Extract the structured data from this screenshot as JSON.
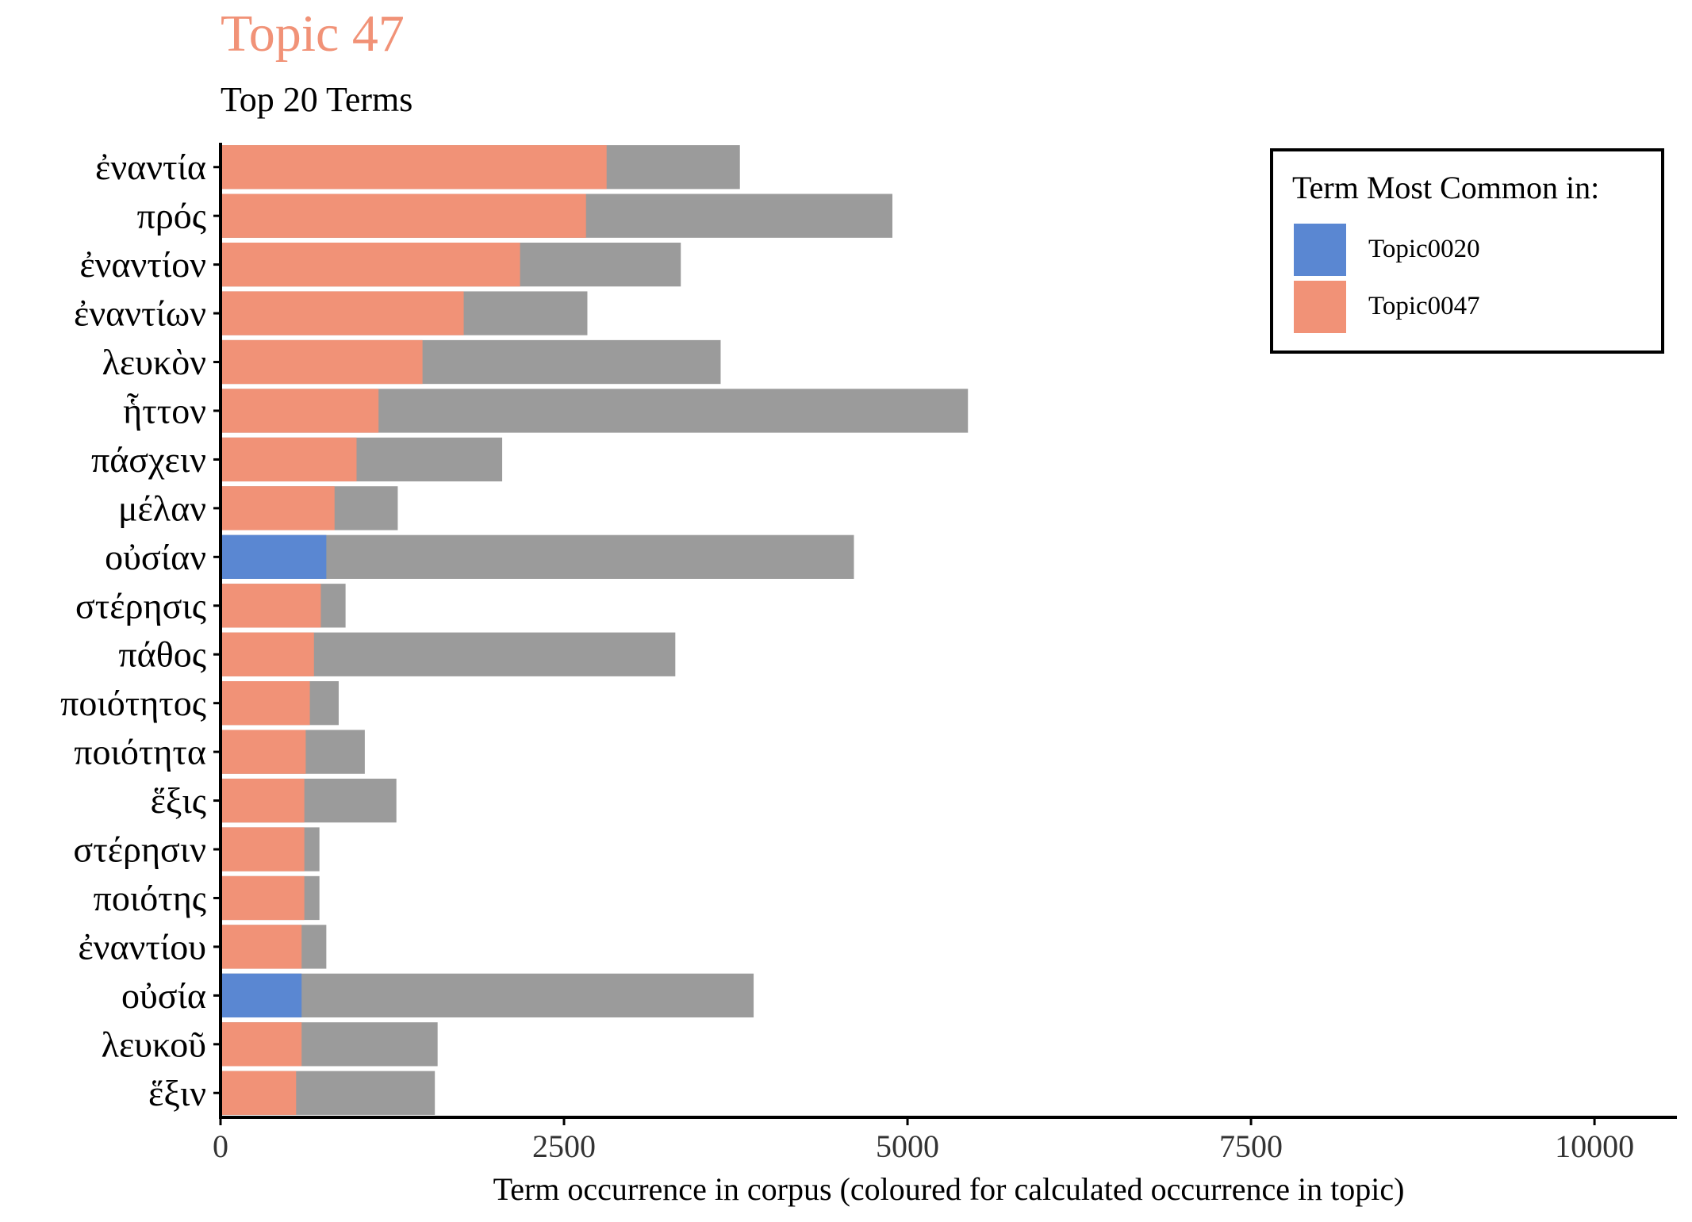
{
  "title": "Topic 47",
  "subtitle": "Top 20 Terms",
  "colors": {
    "topic0020": "#5a87d2",
    "topic0047": "#f19277",
    "corpus": "#9b9b9b"
  },
  "legend": {
    "title": "Term Most Common in:",
    "items": [
      {
        "label": "Topic0020",
        "color": "#5a87d2"
      },
      {
        "label": "Topic0047",
        "color": "#f19277"
      }
    ]
  },
  "chart_data": {
    "type": "bar",
    "orientation": "horizontal",
    "xlabel": "Term occurrence in corpus (coloured for calculated occurrence in topic)",
    "ylabel": "",
    "xlim": [
      0,
      10600
    ],
    "xticks": [
      "0",
      "2500",
      "5000",
      "7500",
      "10000"
    ],
    "xtick_values": [
      0,
      2500,
      5000,
      7500,
      10000
    ],
    "grid": false,
    "legend_position": "top-right",
    "categories": [
      "ἐναντία",
      "πρός",
      "ἐναντίον",
      "ἐναντίων",
      "λευκὸν",
      "ἧττον",
      "πάσχειν",
      "μέλαν",
      "οὐσίαν",
      "στέρησις",
      "πάθος",
      "ποιότητος",
      "ποιότητα",
      "ἕξις",
      "στέρησιν",
      "ποιότης",
      "ἐναντίου",
      "οὐσία",
      "λευκοῦ",
      "ἕξιν"
    ],
    "series": [
      {
        "name": "corpus",
        "values": [
          3780,
          4890,
          3350,
          2670,
          3640,
          5440,
          2050,
          1290,
          4610,
          910,
          3310,
          860,
          1050,
          1280,
          720,
          720,
          770,
          3880,
          1580,
          1560
        ]
      },
      {
        "name": "topic",
        "values": [
          2810,
          2660,
          2180,
          1770,
          1470,
          1150,
          990,
          830,
          770,
          730,
          680,
          650,
          620,
          610,
          610,
          610,
          590,
          590,
          590,
          550
        ]
      }
    ],
    "most_common_in": [
      "Topic0047",
      "Topic0047",
      "Topic0047",
      "Topic0047",
      "Topic0047",
      "Topic0047",
      "Topic0047",
      "Topic0047",
      "Topic0020",
      "Topic0047",
      "Topic0047",
      "Topic0047",
      "Topic0047",
      "Topic0047",
      "Topic0047",
      "Topic0047",
      "Topic0047",
      "Topic0020",
      "Topic0047",
      "Topic0047"
    ]
  }
}
